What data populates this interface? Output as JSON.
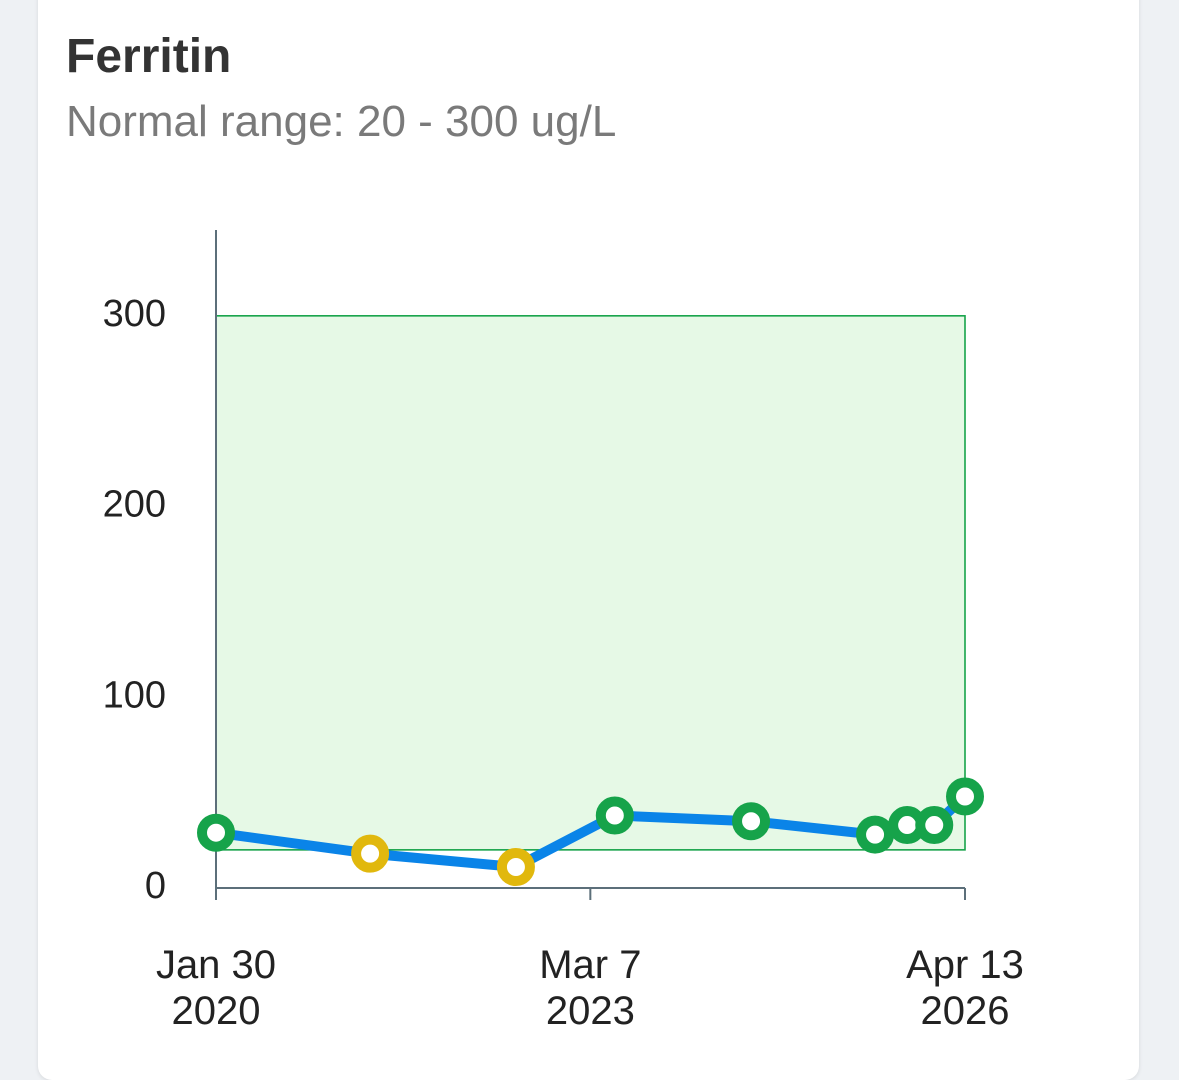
{
  "card": {
    "title": "Ferritin",
    "subtitle": "Normal range: 20 - 300 ug/L"
  },
  "colors": {
    "line": "#0a84e8",
    "normal_point": "#16a34a",
    "out_of_range_point": "#e1b80d",
    "range_fill": "#e6f9e6",
    "range_stroke": "#16a34a",
    "axis": "#5c6f7a"
  },
  "chart_data": {
    "type": "line",
    "title": "Ferritin",
    "subtitle": "Normal range: 20 - 300 ug/L",
    "unit": "ug/L",
    "normal_range": [
      20,
      300
    ],
    "ylim": [
      0,
      345
    ],
    "y_ticks": [
      0,
      100,
      200,
      300
    ],
    "x_range": [
      "2020-01-30",
      "2026-04-13"
    ],
    "x_ticks": [
      {
        "date": "2020-01-30",
        "line1": "Jan 30",
        "line2": "2020"
      },
      {
        "date": "2023-03-07",
        "line1": "Mar 7",
        "line2": "2023"
      },
      {
        "date": "2026-04-13",
        "line1": "Apr 13",
        "line2": "2026"
      }
    ],
    "series": [
      {
        "points": [
          {
            "date": "2020-01-30",
            "value": 29,
            "status": "normal"
          },
          {
            "date": "2021-05-10",
            "value": 18,
            "status": "low"
          },
          {
            "date": "2022-07-25",
            "value": 11,
            "status": "low"
          },
          {
            "date": "2023-05-20",
            "value": 38,
            "status": "normal"
          },
          {
            "date": "2024-07-05",
            "value": 35,
            "status": "normal"
          },
          {
            "date": "2025-07-15",
            "value": 28,
            "status": "normal"
          },
          {
            "date": "2025-10-20",
            "value": 33,
            "status": "normal"
          },
          {
            "date": "2026-01-10",
            "value": 33,
            "status": "normal"
          },
          {
            "date": "2026-04-13",
            "value": 48,
            "status": "normal"
          }
        ]
      }
    ],
    "grid": false,
    "legend": "none"
  }
}
